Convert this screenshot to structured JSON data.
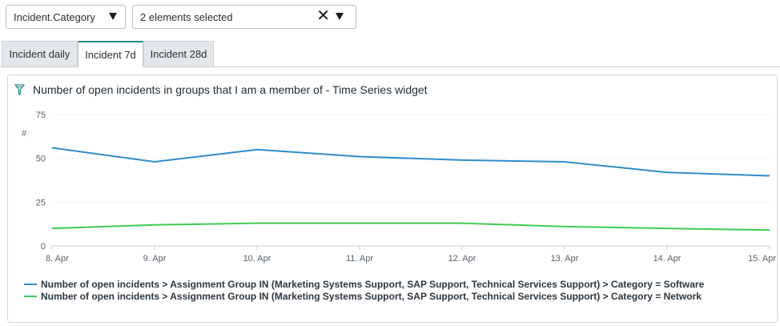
{
  "filters": {
    "field_select": {
      "value": "Incident.Category"
    },
    "values_select": {
      "value": "2 elements selected",
      "clear_glyph": "✕"
    }
  },
  "tabs": [
    {
      "label": "Incident daily",
      "active": false
    },
    {
      "label": "Incident 7d",
      "active": true
    },
    {
      "label": "Incident 28d",
      "active": false
    }
  ],
  "widget": {
    "title": "Number of open incidents in groups that I am a member of - Time Series widget",
    "icon": "filter-icon"
  },
  "colors": {
    "software": "#2e8ccb",
    "network": "#41cc55",
    "tab_accent": "#2b8a80"
  },
  "chart_data": {
    "type": "line",
    "title": "Number of open incidents in groups that I am a member of - Time Series widget",
    "ylabel": "#",
    "xlabel": "",
    "categories": [
      "8. Apr",
      "9. Apr",
      "10. Apr",
      "11. Apr",
      "12. Apr",
      "13. Apr",
      "14. Apr",
      "15. Apr"
    ],
    "y_ticks": [
      "0",
      "25",
      "50",
      "75"
    ],
    "ylim": [
      0,
      75
    ],
    "grid": true,
    "legend_position": "bottom-left",
    "series": [
      {
        "name": "Number of open incidents > Assignment Group IN (Marketing Systems Support, SAP Support, Technical Services Support) > Category = Software",
        "color": "#2e8ccb",
        "values": [
          56,
          48,
          55,
          51,
          49,
          48,
          42,
          40
        ]
      },
      {
        "name": "Number of open incidents > Assignment Group IN (Marketing Systems Support, SAP Support, Technical Services Support) > Category = Network",
        "color": "#41cc55",
        "values": [
          10,
          12,
          13,
          13,
          13,
          11,
          10,
          9
        ]
      }
    ]
  }
}
